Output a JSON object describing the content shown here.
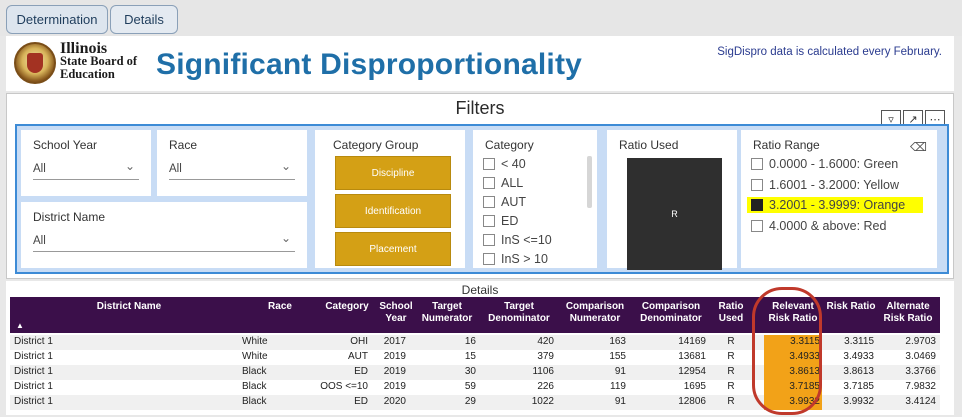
{
  "tabs": [
    {
      "label": "Determination"
    },
    {
      "label": "Details"
    }
  ],
  "header": {
    "org_line1": "Illinois",
    "org_line2": "State Board of",
    "org_line3": "Education",
    "title": "Significant Disproportionality",
    "note": "SigDispro data is calculated every February."
  },
  "filters": {
    "title": "Filters",
    "school_year": {
      "label": "School Year",
      "value": "All"
    },
    "race": {
      "label": "Race",
      "value": "All"
    },
    "district_name": {
      "label": "District Name",
      "value": "All"
    },
    "category_group": {
      "label": "Category Group",
      "buttons": [
        "Discipline",
        "Identification",
        "Placement"
      ]
    },
    "category": {
      "label": "Category",
      "items": [
        "< 40",
        "ALL",
        "AUT",
        "ED",
        "InS <=10",
        "InS > 10"
      ]
    },
    "ratio_used": {
      "label": "Ratio Used",
      "value": "R"
    },
    "ratio_range": {
      "label": "Ratio Range",
      "items": [
        {
          "label": "0.0000 - 1.6000: Green",
          "checked": false
        },
        {
          "label": "1.6001 - 3.2000: Yellow",
          "checked": false
        },
        {
          "label": "3.2001 - 3.9999: Orange",
          "checked": true
        },
        {
          "label": "4.0000 & above: Red",
          "checked": false
        }
      ]
    }
  },
  "details": {
    "title": "Details",
    "headers": {
      "district": "District Name",
      "race": "Race",
      "category": "Category",
      "year": "School Year",
      "tnum": "Target Numerator",
      "tden": "Target Denominator",
      "cnum": "Comparison Numerator",
      "cden": "Comparison Denominator",
      "ratio": "Ratio Used",
      "rrr": "Relevant Risk Ratio",
      "rr": "Risk Ratio",
      "arr": "Alternate Risk Ratio"
    },
    "rows": [
      {
        "district": "District 1",
        "race": "White",
        "category": "OHI",
        "year": "2017",
        "tnum": "16",
        "tden": "420",
        "cnum": "163",
        "cden": "14169",
        "ratio": "R",
        "rrr": "3.3115",
        "rr": "3.3115",
        "arr": "2.9703"
      },
      {
        "district": "District 1",
        "race": "White",
        "category": "AUT",
        "year": "2019",
        "tnum": "15",
        "tden": "379",
        "cnum": "155",
        "cden": "13681",
        "ratio": "R",
        "rrr": "3.4933",
        "rr": "3.4933",
        "arr": "3.0469"
      },
      {
        "district": "District 1",
        "race": "Black",
        "category": "ED",
        "year": "2019",
        "tnum": "30",
        "tden": "1106",
        "cnum": "91",
        "cden": "12954",
        "ratio": "R",
        "rrr": "3.8613",
        "rr": "3.8613",
        "arr": "3.3766"
      },
      {
        "district": "District 1",
        "race": "Black",
        "category": "OOS <=10",
        "year": "2019",
        "tnum": "59",
        "tden": "226",
        "cnum": "119",
        "cden": "1695",
        "ratio": "R",
        "rrr": "3.7185",
        "rr": "3.7185",
        "arr": "7.9832"
      },
      {
        "district": "District 1",
        "race": "Black",
        "category": "ED",
        "year": "2020",
        "tnum": "29",
        "tden": "1022",
        "cnum": "91",
        "cden": "12806",
        "ratio": "R",
        "rrr": "3.9932",
        "rr": "3.9932",
        "arr": "3.4124"
      }
    ]
  },
  "colors": {
    "title_blue": "#1f6fa8",
    "category_gold": "#d4a015",
    "table_header_purple": "#3b0f4a",
    "relevant_ratio_orange": "#f2a218",
    "highlight_yellow": "#ffff00",
    "annotation_red": "#c0392b"
  }
}
